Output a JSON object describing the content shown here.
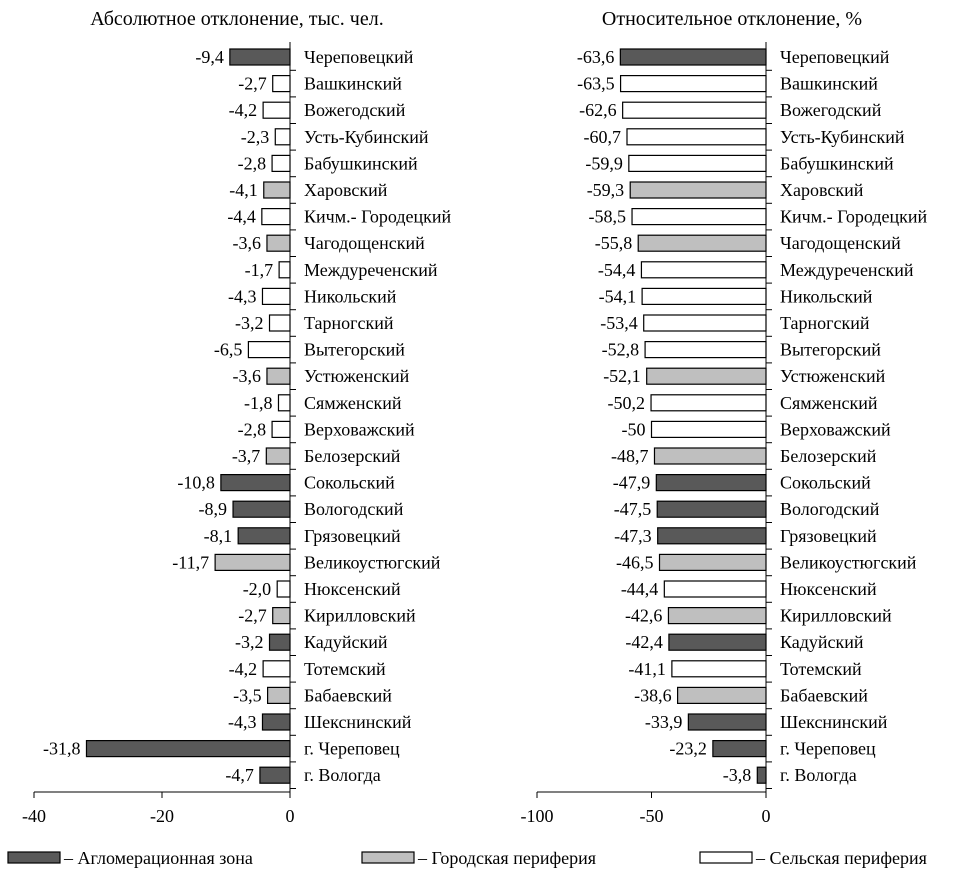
{
  "colors": {
    "agglomeration": "#595959",
    "urban_periphery": "#bfbfbf",
    "rural_periphery": "#ffffff",
    "outline": "#000000"
  },
  "legend": [
    {
      "key": "agglomeration",
      "label": "– Агломерационная зона"
    },
    {
      "key": "urban_periphery",
      "label": "– Городская периферия"
    },
    {
      "key": "rural_periphery",
      "label": "– Сельская периферия"
    }
  ],
  "chart_data": [
    {
      "type": "bar",
      "orientation": "horizontal",
      "title": "Абсолютное отклонение, тыс. чел.",
      "xlim": [
        -40,
        0
      ],
      "ticks": [
        "-40",
        "-20",
        "0"
      ],
      "bars": [
        {
          "category": "Череповецкий",
          "value": -9.4,
          "label": "-9,4",
          "group": "agglomeration"
        },
        {
          "category": "Вашкинский",
          "value": -2.7,
          "label": "-2,7",
          "group": "rural_periphery"
        },
        {
          "category": "Вожегодский",
          "value": -4.2,
          "label": "-4,2",
          "group": "rural_periphery"
        },
        {
          "category": "Усть-Кубинский",
          "value": -2.3,
          "label": "-2,3",
          "group": "rural_periphery"
        },
        {
          "category": "Бабушкинский",
          "value": -2.8,
          "label": "-2,8",
          "group": "rural_periphery"
        },
        {
          "category": "Харовский",
          "value": -4.1,
          "label": "-4,1",
          "group": "urban_periphery"
        },
        {
          "category": "Кичм.- Городецкий",
          "value": -4.4,
          "label": "-4,4",
          "group": "rural_periphery"
        },
        {
          "category": "Чагодощенский",
          "value": -3.6,
          "label": "-3,6",
          "group": "urban_periphery"
        },
        {
          "category": "Междуреченский",
          "value": -1.7,
          "label": "-1,7",
          "group": "rural_periphery"
        },
        {
          "category": "Никольский",
          "value": -4.3,
          "label": "-4,3",
          "group": "rural_periphery"
        },
        {
          "category": "Тарногский",
          "value": -3.2,
          "label": "-3,2",
          "group": "rural_periphery"
        },
        {
          "category": "Вытегорский",
          "value": -6.5,
          "label": "-6,5",
          "group": "rural_periphery"
        },
        {
          "category": "Устюженский",
          "value": -3.6,
          "label": "-3,6",
          "group": "urban_periphery"
        },
        {
          "category": "Сямженский",
          "value": -1.8,
          "label": "-1,8",
          "group": "rural_periphery"
        },
        {
          "category": "Верховажский",
          "value": -2.8,
          "label": "-2,8",
          "group": "rural_periphery"
        },
        {
          "category": "Белозерский",
          "value": -3.7,
          "label": "-3,7",
          "group": "urban_periphery"
        },
        {
          "category": "Сокольский",
          "value": -10.8,
          "label": "-10,8",
          "group": "agglomeration"
        },
        {
          "category": "Вологодский",
          "value": -8.9,
          "label": "-8,9",
          "group": "agglomeration"
        },
        {
          "category": "Грязовецкий",
          "value": -8.1,
          "label": "-8,1",
          "group": "agglomeration"
        },
        {
          "category": "Великоустюгский",
          "value": -11.7,
          "label": "-11,7",
          "group": "urban_periphery"
        },
        {
          "category": "Нюксенский",
          "value": -2.0,
          "label": "-2,0",
          "group": "rural_periphery"
        },
        {
          "category": "Кирилловский",
          "value": -2.7,
          "label": "-2,7",
          "group": "urban_periphery"
        },
        {
          "category": "Кадуйский",
          "value": -3.2,
          "label": "-3,2",
          "group": "agglomeration"
        },
        {
          "category": "Тотемский",
          "value": -4.2,
          "label": "-4,2",
          "group": "rural_periphery"
        },
        {
          "category": "Бабаевский",
          "value": -3.5,
          "label": "-3,5",
          "group": "urban_periphery"
        },
        {
          "category": "Шекснинский",
          "value": -4.3,
          "label": "-4,3",
          "group": "agglomeration"
        },
        {
          "category": "г. Череповец",
          "value": -31.8,
          "label": "-31,8",
          "group": "agglomeration"
        },
        {
          "category": "г. Вологда",
          "value": -4.7,
          "label": "-4,7",
          "group": "agglomeration"
        }
      ]
    },
    {
      "type": "bar",
      "orientation": "horizontal",
      "title": "Относительное отклонение, %",
      "xlim": [
        -100,
        0
      ],
      "ticks": [
        "-100",
        "-50",
        "0"
      ],
      "bars": [
        {
          "category": "Череповецкий",
          "value": -63.6,
          "label": "-63,6",
          "group": "agglomeration"
        },
        {
          "category": "Вашкинский",
          "value": -63.5,
          "label": "-63,5",
          "group": "rural_periphery"
        },
        {
          "category": "Вожегодский",
          "value": -62.6,
          "label": "-62,6",
          "group": "rural_periphery"
        },
        {
          "category": "Усть-Кубинский",
          "value": -60.7,
          "label": "-60,7",
          "group": "rural_periphery"
        },
        {
          "category": "Бабушкинский",
          "value": -59.9,
          "label": "-59,9",
          "group": "rural_periphery"
        },
        {
          "category": "Харовский",
          "value": -59.3,
          "label": "-59,3",
          "group": "urban_periphery"
        },
        {
          "category": "Кичм.- Городецкий",
          "value": -58.5,
          "label": "-58,5",
          "group": "rural_periphery"
        },
        {
          "category": "Чагодощенский",
          "value": -55.8,
          "label": "-55,8",
          "group": "urban_periphery"
        },
        {
          "category": "Междуреченский",
          "value": -54.4,
          "label": "-54,4",
          "group": "rural_periphery"
        },
        {
          "category": "Никольский",
          "value": -54.1,
          "label": "-54,1",
          "group": "rural_periphery"
        },
        {
          "category": "Тарногский",
          "value": -53.4,
          "label": "-53,4",
          "group": "rural_periphery"
        },
        {
          "category": "Вытегорский",
          "value": -52.8,
          "label": "-52,8",
          "group": "rural_periphery"
        },
        {
          "category": "Устюженский",
          "value": -52.1,
          "label": "-52,1",
          "group": "urban_periphery"
        },
        {
          "category": "Сямженский",
          "value": -50.2,
          "label": "-50,2",
          "group": "rural_periphery"
        },
        {
          "category": "Верховажский",
          "value": -50,
          "label": "-50",
          "group": "rural_periphery"
        },
        {
          "category": "Белозерский",
          "value": -48.7,
          "label": "-48,7",
          "group": "urban_periphery"
        },
        {
          "category": "Сокольский",
          "value": -47.9,
          "label": "-47,9",
          "group": "agglomeration"
        },
        {
          "category": "Вологодский",
          "value": -47.5,
          "label": "-47,5",
          "group": "agglomeration"
        },
        {
          "category": "Грязовецкий",
          "value": -47.3,
          "label": "-47,3",
          "group": "agglomeration"
        },
        {
          "category": "Великоустюгский",
          "value": -46.5,
          "label": "-46,5",
          "group": "urban_periphery"
        },
        {
          "category": "Нюксенский",
          "value": -44.4,
          "label": "-44,4",
          "group": "rural_periphery"
        },
        {
          "category": "Кирилловский",
          "value": -42.6,
          "label": "-42,6",
          "group": "urban_periphery"
        },
        {
          "category": "Кадуйский",
          "value": -42.4,
          "label": "-42,4",
          "group": "agglomeration"
        },
        {
          "category": "Тотемский",
          "value": -41.1,
          "label": "-41,1",
          "group": "rural_periphery"
        },
        {
          "category": "Бабаевский",
          "value": -38.6,
          "label": "-38,6",
          "group": "urban_periphery"
        },
        {
          "category": "Шекснинский",
          "value": -33.9,
          "label": "-33,9",
          "group": "agglomeration"
        },
        {
          "category": "г. Череповец",
          "value": -23.2,
          "label": "-23,2",
          "group": "agglomeration"
        },
        {
          "category": "г. Вологда",
          "value": -3.8,
          "label": "-3,8",
          "group": "agglomeration"
        }
      ]
    }
  ]
}
